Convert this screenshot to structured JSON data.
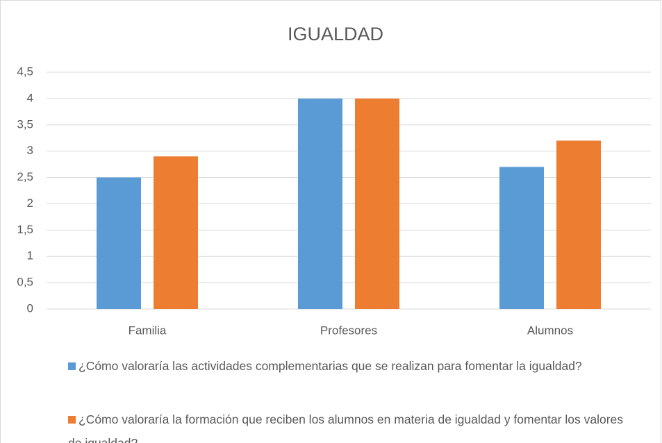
{
  "chart_data": {
    "type": "bar",
    "title": "IGUALDAD",
    "categories": [
      "Familia",
      "Profesores",
      "Alumnos"
    ],
    "series": [
      {
        "name": "¿Cómo valoraría las actividades complementarias que se realizan para fomentar la igualdad?",
        "color": "#5b9bd5",
        "values": [
          2.5,
          4,
          2.7
        ]
      },
      {
        "name": "¿Cómo valoraría la formación que reciben los alumnos en materia de igualdad y fomentar los valores de igualdad?",
        "color": "#ed7d31",
        "values": [
          2.9,
          4,
          3.2
        ]
      }
    ],
    "ylim": [
      0,
      4.5
    ],
    "yticks": [
      0,
      {
        "value": 0.5,
        "label": "0,5"
      },
      1,
      {
        "value": 1.5,
        "label": "1,5"
      },
      2,
      {
        "value": 2.5,
        "label": "2,5"
      },
      3,
      {
        "value": 3.5,
        "label": "3,5"
      },
      4,
      {
        "value": 4.5,
        "label": "4,5"
      }
    ],
    "grid": true,
    "legend": "bottom"
  }
}
